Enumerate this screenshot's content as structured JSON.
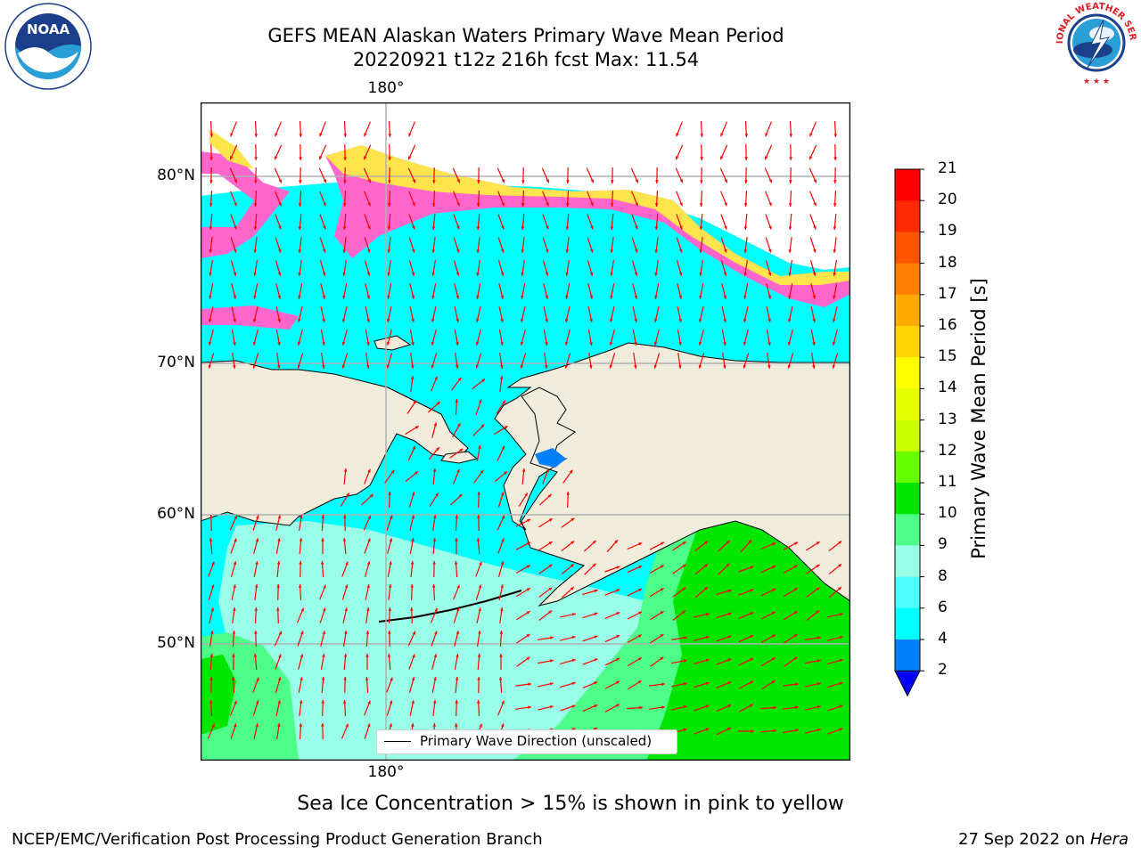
{
  "header": {
    "title_line1": "GEFS MEAN Alaskan Waters Primary Wave Mean Period",
    "title_line2": "20220921 t12z 216h fcst   Max: 11.54"
  },
  "logos": {
    "noaa_text": "NOAA",
    "nws_text": "NATIONAL WEATHER SERVICE"
  },
  "map": {
    "lon_top_label": "180°",
    "lon_bottom_label": "180°",
    "lat_labels": [
      "80°N",
      "70°N",
      "60°N",
      "50°N"
    ],
    "legend_label": "Primary Wave Direction (unscaled)",
    "colors": {
      "land": "#efecdc",
      "ice_pink": "#ff66cc",
      "ice_yellow": "#ffe44d",
      "arrow": "#ff0000"
    }
  },
  "colorbar": {
    "label": "Primary Wave Mean Period [s]",
    "ticks": [
      "21",
      "20",
      "19",
      "18",
      "17",
      "16",
      "15",
      "14",
      "13",
      "12",
      "11",
      "10",
      "9",
      "8",
      "6",
      "4",
      "2"
    ],
    "colors": [
      "#ff0000",
      "#ff2a00",
      "#ff5500",
      "#ff7f00",
      "#ffaa00",
      "#ffd400",
      "#ffff00",
      "#e5ff00",
      "#ccff00",
      "#66ff00",
      "#00e600",
      "#4dff88",
      "#99ffe6",
      "#4dffff",
      "#00ffff",
      "#0080ff"
    ],
    "under_color": "#0000ff"
  },
  "caption": "Sea Ice Concentration > 15% is shown in pink to yellow",
  "footer": {
    "left": "NCEP/EMC/Verification Post Processing Product Generation Branch",
    "right_date": "27 Sep 2022 on ",
    "right_machine": "Hera"
  }
}
